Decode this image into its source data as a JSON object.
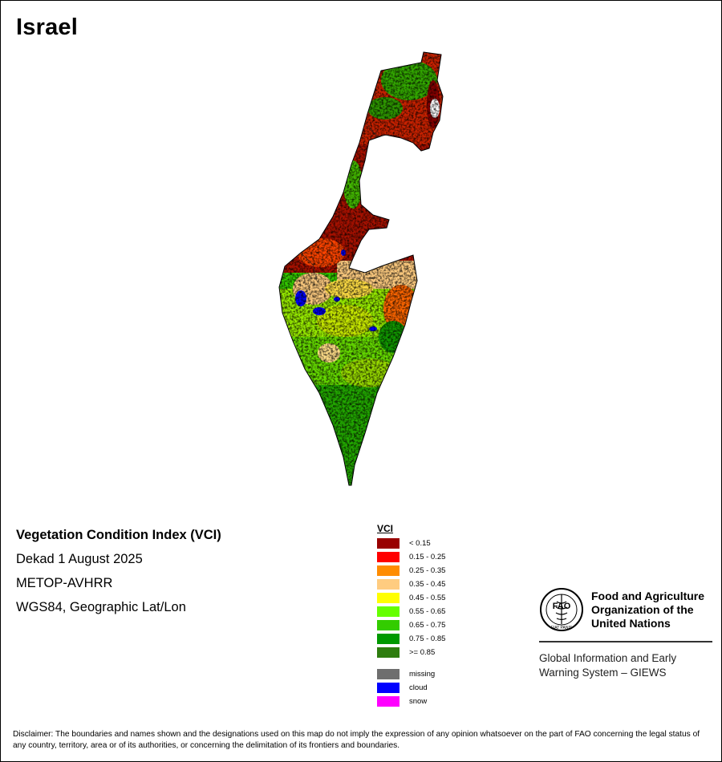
{
  "title": "Israel",
  "info": {
    "index_name": "Vegetation Condition Index (VCI)",
    "dekad": "Dekad 1 August 2025",
    "sensor": "METOP-AVHRR",
    "projection": "WGS84, Geographic Lat/Lon"
  },
  "legend": {
    "title": "VCI",
    "classes": [
      {
        "label": "< 0.15",
        "color": "#990000"
      },
      {
        "label": "0.15 - 0.25",
        "color": "#ff0000"
      },
      {
        "label": "0.25 - 0.35",
        "color": "#ff8c00"
      },
      {
        "label": "0.35 - 0.45",
        "color": "#ffcc80"
      },
      {
        "label": "0.45 - 0.55",
        "color": "#ffff00"
      },
      {
        "label": "0.55 - 0.65",
        "color": "#66ff00"
      },
      {
        "label": "0.65 - 0.75",
        "color": "#33cc00"
      },
      {
        "label": "0.75 - 0.85",
        "color": "#009900"
      },
      {
        "label": ">= 0.85",
        "color": "#2e7d0f"
      }
    ],
    "special": [
      {
        "label": "missing",
        "color": "#6e6e6e"
      },
      {
        "label": "cloud",
        "color": "#0000ff"
      },
      {
        "label": "snow",
        "color": "#ff00ff"
      }
    ]
  },
  "organization": {
    "name_line1": "Food and Agriculture",
    "name_line2": "Organization of the",
    "name_line3": "United Nations",
    "logo_text": "FAO",
    "logo_motto": "FIAT PANIS",
    "giews_line1": "Global Information and Early",
    "giews_line2": "Warning System – GIEWS"
  },
  "disclaimer": "Disclaimer: The boundaries and names shown and the designations used on this map do not imply the expression of any opinion whatsoever on the part of FAO concerning the legal status of any country, territory, area or of its authorities, or concerning the delimitation of its frontiers and boundaries."
}
